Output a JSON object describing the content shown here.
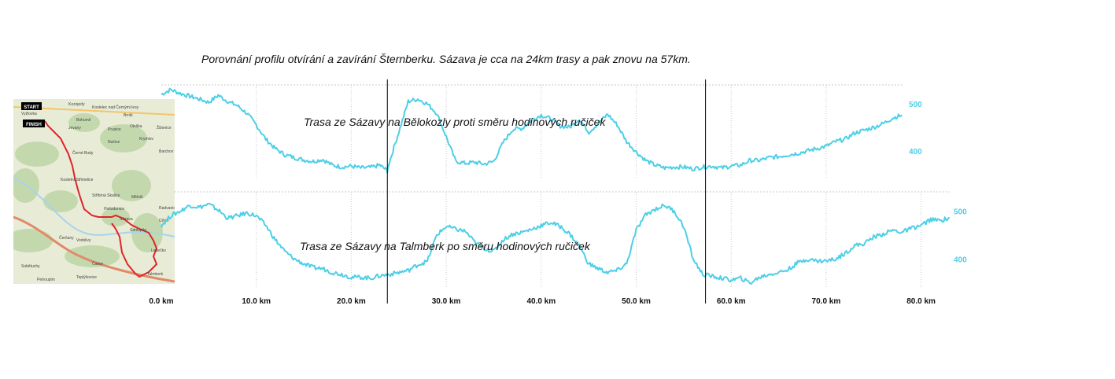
{
  "caption": "Porovnání profilu otvírání a zavírání Šternberku. Sázava je cca na 24km trasy a pak znovu na 57km.",
  "colors": {
    "line": "#4dcfe6",
    "grid": "#c8c8c8",
    "marker": "#000000",
    "route": "#e0242a",
    "map_bg": "#e8ecd6",
    "forest": "#b9d5a2",
    "water": "#a9d3ea"
  },
  "map": {
    "start_label": "START",
    "finish_label": "FINISH",
    "places": [
      "Kozojedy",
      "Kostelec nad Černými lesy",
      "Vyžlovka",
      "Bohumil",
      "Brník",
      "Jevany",
      "Prusice",
      "Oleška",
      "Žiženice",
      "Stříbrná Skalice",
      "Kostelní Střimelice",
      "Sázava",
      "Mělník",
      "Radvanice",
      "Úžice",
      "Samopše",
      "Čerčany",
      "Vodslivy",
      "Čakov",
      "Teplýšovice",
      "Petroupim",
      "Sobětuchy",
      "Ledečko",
      "Talmberk",
      "Černé Budy",
      "Hvězdonice",
      "Nučice",
      "Krymlov",
      "Barchov"
    ]
  },
  "chart_data": [
    {
      "type": "line",
      "title": "",
      "annotation": "Trasa ze Sázavy na Bělokozly proti směru hodinových ručiček",
      "xlabel": "",
      "ylabel": "",
      "xlim": [
        0,
        78
      ],
      "ylim": [
        340,
        540
      ],
      "y_ticks": [
        400,
        500
      ],
      "y_tick_labels": [
        "400",
        "500"
      ],
      "grid": true,
      "markers_km": [
        23.8,
        57.3
      ],
      "series": [
        {
          "x": [
            0,
            1,
            2,
            3,
            4,
            5,
            6,
            7,
            8,
            9,
            10,
            11,
            12,
            13,
            14,
            15,
            16,
            17,
            18,
            19,
            20,
            21,
            22,
            23,
            23.8,
            24,
            25,
            26,
            27,
            28,
            29,
            30,
            31,
            32,
            33,
            34,
            35,
            36,
            37,
            38,
            39,
            40,
            41,
            42,
            43,
            44,
            45,
            46,
            47,
            48,
            49,
            50,
            51,
            52,
            53,
            54,
            55,
            56,
            57,
            58,
            59,
            60,
            61,
            62,
            63,
            64,
            65,
            66,
            67,
            68,
            69,
            70,
            71,
            72,
            73,
            74,
            75,
            76,
            77,
            78
          ],
          "y": [
            520,
            530,
            522,
            516,
            510,
            503,
            518,
            505,
            496,
            480,
            455,
            425,
            405,
            392,
            386,
            381,
            378,
            382,
            370,
            366,
            368,
            364,
            365,
            370,
            358,
            375,
            440,
            505,
            510,
            500,
            480,
            430,
            378,
            374,
            376,
            372,
            378,
            418,
            446,
            448,
            466,
            476,
            468,
            453,
            450,
            468,
            440,
            458,
            478,
            455,
            420,
            398,
            380,
            370,
            364,
            366,
            366,
            362,
            366,
            368,
            364,
            368,
            370,
            380,
            380,
            386,
            388,
            392,
            395,
            400,
            405,
            410,
            420,
            425,
            438,
            444,
            450,
            458,
            470,
            476
          ]
        }
      ]
    },
    {
      "type": "line",
      "title": "",
      "annotation": "Trasa ze Sázavy na Talmberk po směru hodinových ručiček",
      "xlabel": "",
      "ylabel": "",
      "xlim": [
        0,
        83
      ],
      "ylim": [
        340,
        540
      ],
      "y_ticks": [
        400,
        500
      ],
      "y_tick_labels": [
        "400",
        "500"
      ],
      "x_ticks": [
        0,
        10,
        20,
        30,
        40,
        50,
        60,
        70,
        80
      ],
      "x_tick_labels": [
        "0.0 km",
        "10.0 km",
        "20.0 km",
        "30.0 km",
        "40.0 km",
        "50.0 km",
        "60.0 km",
        "70.0 km",
        "80.0 km"
      ],
      "grid": true,
      "markers_km": [
        23.8,
        57.3
      ],
      "series": [
        {
          "x": [
            0,
            1,
            2,
            3,
            4,
            5,
            6,
            7,
            8,
            9,
            10,
            11,
            12,
            13,
            14,
            15,
            16,
            17,
            18,
            19,
            20,
            21,
            22,
            23,
            24,
            25,
            26,
            27,
            28,
            29,
            30,
            31,
            32,
            33,
            34,
            35,
            36,
            37,
            38,
            39,
            40,
            41,
            42,
            43,
            44,
            45,
            46,
            47,
            48,
            49,
            50,
            51,
            52,
            53,
            54,
            55,
            56,
            57,
            58,
            59,
            60,
            61,
            62,
            63,
            64,
            65,
            66,
            67,
            68,
            69,
            70,
            71,
            72,
            73,
            74,
            75,
            76,
            77,
            78,
            79,
            80,
            81,
            82,
            83
          ],
          "y": [
            470,
            490,
            500,
            512,
            508,
            514,
            502,
            485,
            490,
            496,
            490,
            470,
            440,
            416,
            400,
            390,
            382,
            380,
            372,
            368,
            362,
            362,
            360,
            365,
            368,
            372,
            376,
            388,
            395,
            450,
            468,
            462,
            458,
            435,
            422,
            416,
            440,
            452,
            456,
            462,
            470,
            476,
            468,
            452,
            428,
            390,
            380,
            372,
            376,
            390,
            460,
            492,
            504,
            512,
            500,
            468,
            400,
            368,
            364,
            360,
            356,
            360,
            350,
            362,
            368,
            372,
            378,
            392,
            400,
            396,
            396,
            400,
            412,
            428,
            432,
            446,
            452,
            460,
            456,
            464,
            470,
            482,
            480,
            486
          ]
        }
      ]
    }
  ]
}
